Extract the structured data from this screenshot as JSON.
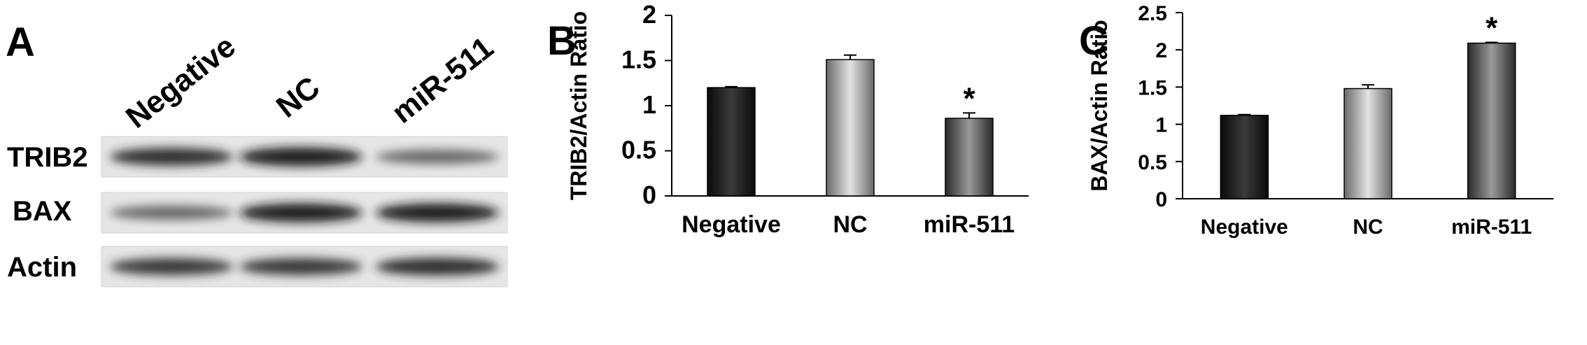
{
  "panel_a": {
    "letter": "A",
    "lanes": [
      "Negative",
      "NC",
      "miR-511"
    ],
    "rows": [
      {
        "label": "TRIB2",
        "intensity": [
          0.85,
          0.95,
          0.55
        ]
      },
      {
        "label": "BAX",
        "intensity": [
          0.55,
          0.95,
          0.95
        ]
      },
      {
        "label": "Actin",
        "intensity": [
          0.8,
          0.8,
          0.85
        ]
      }
    ]
  },
  "chart_data": [
    {
      "letter": "B",
      "type": "bar",
      "categories": [
        "Negative",
        "NC",
        "miR-511"
      ],
      "values": [
        1.2,
        1.51,
        0.86
      ],
      "errors": [
        0.01,
        0.05,
        0.06
      ],
      "significance": [
        "",
        "",
        "*"
      ],
      "ylabel": "TRIB2/Actin Ratio",
      "ylim": [
        0,
        2
      ],
      "yticks": [
        0,
        0.5,
        1,
        1.5,
        2
      ],
      "ytick_labels": [
        "0",
        "0.5",
        "1",
        "1.5",
        "2"
      ],
      "bar_styles": [
        "dark",
        "light",
        "medium"
      ]
    },
    {
      "letter": "C",
      "type": "bar",
      "categories": [
        "Negative",
        "NC",
        "miR-511"
      ],
      "values": [
        1.12,
        1.48,
        2.09
      ],
      "errors": [
        0.01,
        0.05,
        0.01
      ],
      "significance": [
        "",
        "",
        "*"
      ],
      "ylabel": "BAX/Actin Ratio",
      "ylim": [
        0,
        2.5
      ],
      "yticks": [
        0,
        0.5,
        1,
        1.5,
        2,
        2.5
      ],
      "ytick_labels": [
        "0",
        "0.5",
        "1",
        "1.5",
        "2",
        "2.5"
      ],
      "bar_styles": [
        "dark",
        "light",
        "medium"
      ]
    }
  ]
}
